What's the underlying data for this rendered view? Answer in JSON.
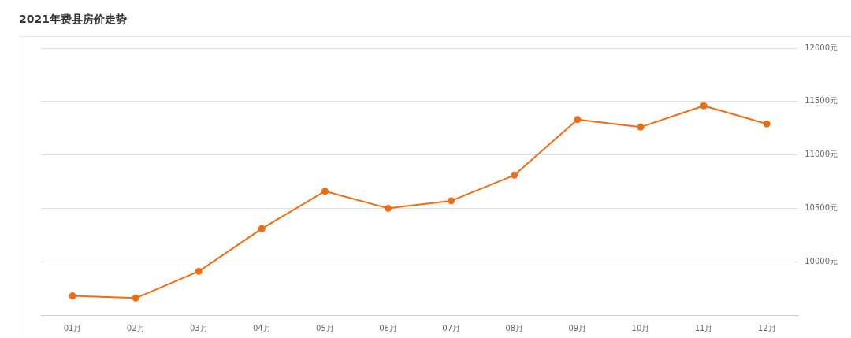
{
  "chart_data": {
    "type": "line",
    "title": "2021年费县房价走势",
    "categories": [
      "01月",
      "02月",
      "03月",
      "04月",
      "05月",
      "06月",
      "07月",
      "08月",
      "09月",
      "10月",
      "11月",
      "12月"
    ],
    "series": [
      {
        "color": "#f06c12",
        "values": [
          9680,
          9660,
          9910,
          10310,
          10660,
          10500,
          10570,
          10810,
          11330,
          11260,
          11460,
          11290
        ]
      }
    ],
    "ylim": [
      9500,
      12000
    ],
    "yticks": [
      {
        "value": 10000,
        "label": "10000元"
      },
      {
        "value": 10500,
        "label": "10500元"
      },
      {
        "value": 11000,
        "label": "11000元"
      },
      {
        "value": 11500,
        "label": "11500元"
      },
      {
        "value": 12000,
        "label": "12000元"
      }
    ],
    "grid": "y",
    "legend": false,
    "marker": "circle",
    "line_style": "solid"
  }
}
